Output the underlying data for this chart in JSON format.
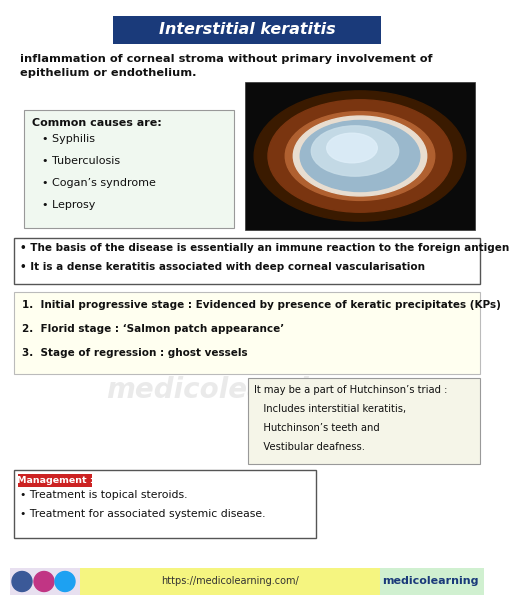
{
  "title": "Interstitial keratitis",
  "title_bg": "#1a3a7a",
  "title_color": "#ffffff",
  "bg_color": "#ffffff",
  "definition_line1": "inflammation of corneal stroma without primary involvement of",
  "definition_line2": "epithelium or endothelium.",
  "causes_title": "Common causes are:",
  "causes": [
    "Syphilis",
    "Tuberculosis",
    "Cogan’s syndrome",
    "Leprosy"
  ],
  "causes_box_bg": "#f0f8f0",
  "causes_box_border": "#999999",
  "basis_lines": [
    "• The basis of the disease is essentially an immune reaction to the foreign antigen",
    "• It is a dense keratitis associated with deep corneal vascularisation"
  ],
  "basis_box_bg": "#ffffff",
  "basis_box_border": "#555555",
  "stages_lines": [
    "1.  Initial progressive stage : Evidenced by presence of keratic precipitates (KPs)",
    "2.  Florid stage : ‘Salmon patch appearance’",
    "3.  Stage of regression : ghost vessels"
  ],
  "stages_box_bg": "#fffff0",
  "stages_box_border": "#bbbbbb",
  "hutchinson_text_line1": "It may be a part of Hutchinson’s triad :",
  "hutchinson_text_line2": "   Includes interstitial keratitis,",
  "hutchinson_text_line3": "   Hutchinson’s teeth and",
  "hutchinson_text_line4": "   Vestibular deafness.",
  "hutchinson_box_bg": "#f5f5e8",
  "hutchinson_box_border": "#999999",
  "management_label": "Management :",
  "management_label_bg": "#cc2222",
  "management_label_color": "#ffffff",
  "management_lines": [
    "• Treatment is topical steroids.",
    "• Treatment for associated systemic disease."
  ],
  "management_box_bg": "#ffffff",
  "management_box_border": "#555555",
  "watermark": "medicolearning",
  "footer_url": "https://medicolearning.com/",
  "footer_brand": "medicolearning",
  "footer_bg_left": "#e8e0f0",
  "footer_bg_mid": "#f5f580",
  "footer_bg_right": "#d0f0d0",
  "fb_color": "#3b5998",
  "ig_color": "#c13584",
  "tw_color": "#1da1f2"
}
